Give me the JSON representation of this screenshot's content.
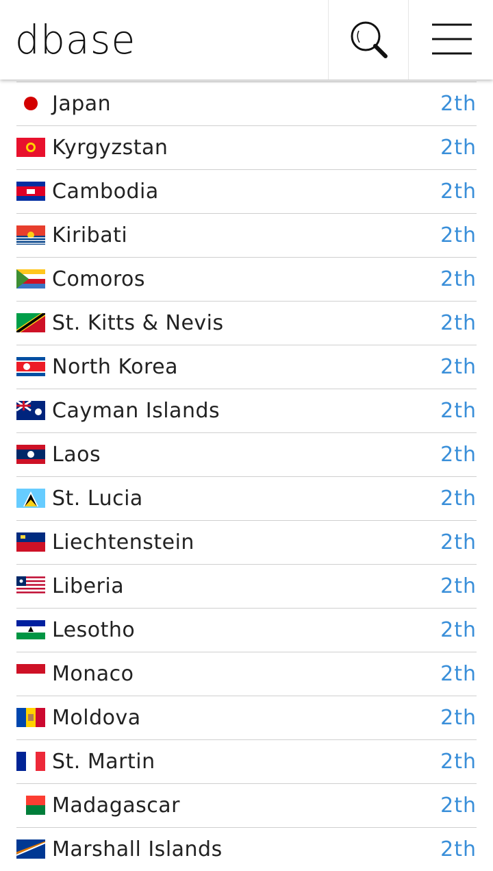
{
  "header": {
    "title": "dbase"
  },
  "list": {
    "rows": [
      {
        "name": "Japan",
        "rank": "2th"
      },
      {
        "name": "Kyrgyzstan",
        "rank": "2th"
      },
      {
        "name": "Cambodia",
        "rank": "2th"
      },
      {
        "name": "Kiribati",
        "rank": "2th"
      },
      {
        "name": "Comoros",
        "rank": "2th"
      },
      {
        "name": "St. Kitts & Nevis",
        "rank": "2th"
      },
      {
        "name": "North Korea",
        "rank": "2th"
      },
      {
        "name": "Cayman Islands",
        "rank": "2th"
      },
      {
        "name": "Laos",
        "rank": "2th"
      },
      {
        "name": "St. Lucia",
        "rank": "2th"
      },
      {
        "name": "Liechtenstein",
        "rank": "2th"
      },
      {
        "name": "Liberia",
        "rank": "2th"
      },
      {
        "name": "Lesotho",
        "rank": "2th"
      },
      {
        "name": "Monaco",
        "rank": "2th"
      },
      {
        "name": "Moldova",
        "rank": "2th"
      },
      {
        "name": "St. Martin",
        "rank": "2th"
      },
      {
        "name": "Madagascar",
        "rank": "2th"
      },
      {
        "name": "Marshall Islands",
        "rank": "2th"
      }
    ]
  }
}
